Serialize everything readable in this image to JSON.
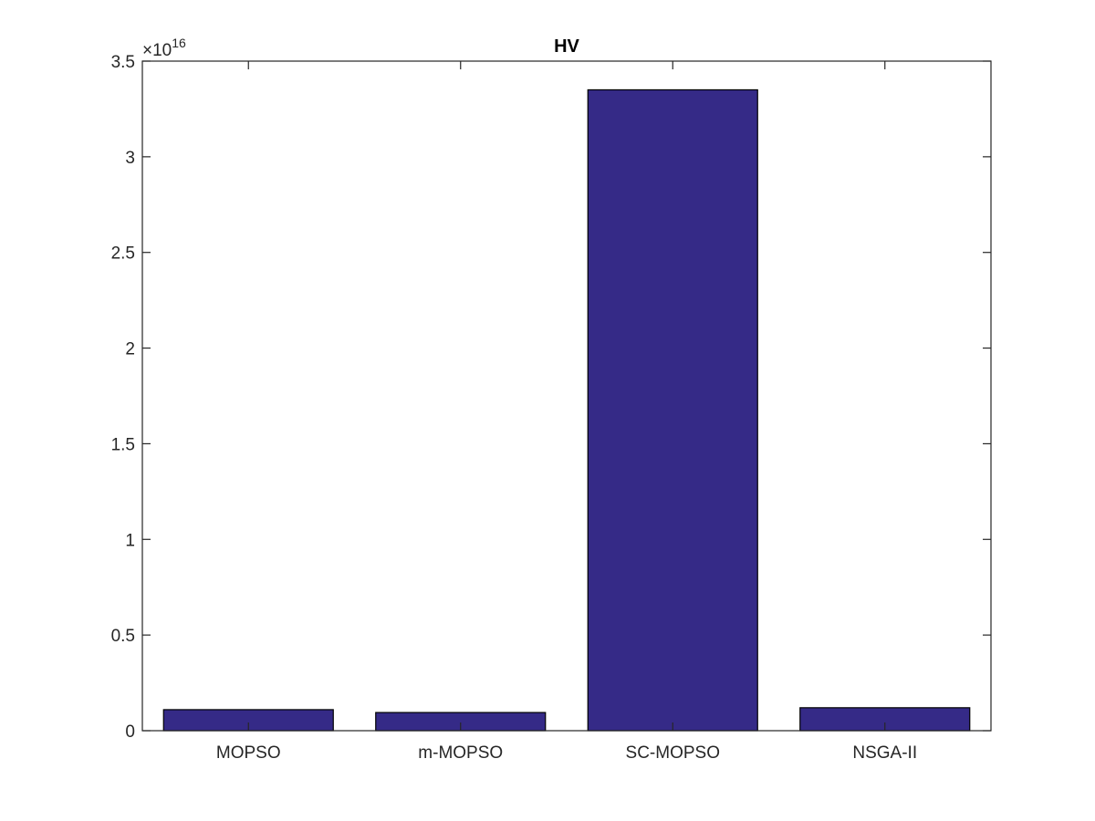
{
  "chart_data": {
    "type": "bar",
    "title": "HV",
    "xlabel": "",
    "ylabel": "",
    "categories": [
      "MOPSO",
      "m-MOPSO",
      "SC-MOPSO",
      "NSGA-II"
    ],
    "values": [
      1100000000000000.0,
      950000000000000.0,
      3.35e+16,
      1200000000000000.0
    ],
    "ylim": [
      0,
      3.5e+16
    ],
    "y_ticks": [
      0,
      0.5,
      1,
      1.5,
      2,
      2.5,
      3,
      3.5
    ],
    "y_tick_labels": [
      "0",
      "0.5",
      "1",
      "1.5",
      "2",
      "2.5",
      "3",
      "3.5"
    ],
    "y_exponent_prefix": "×10",
    "y_exponent": "16",
    "grid": false,
    "legend": "none",
    "colors": {
      "bar_fill": "#352A87",
      "bar_edge": "#000000",
      "axis": "#262626"
    }
  }
}
